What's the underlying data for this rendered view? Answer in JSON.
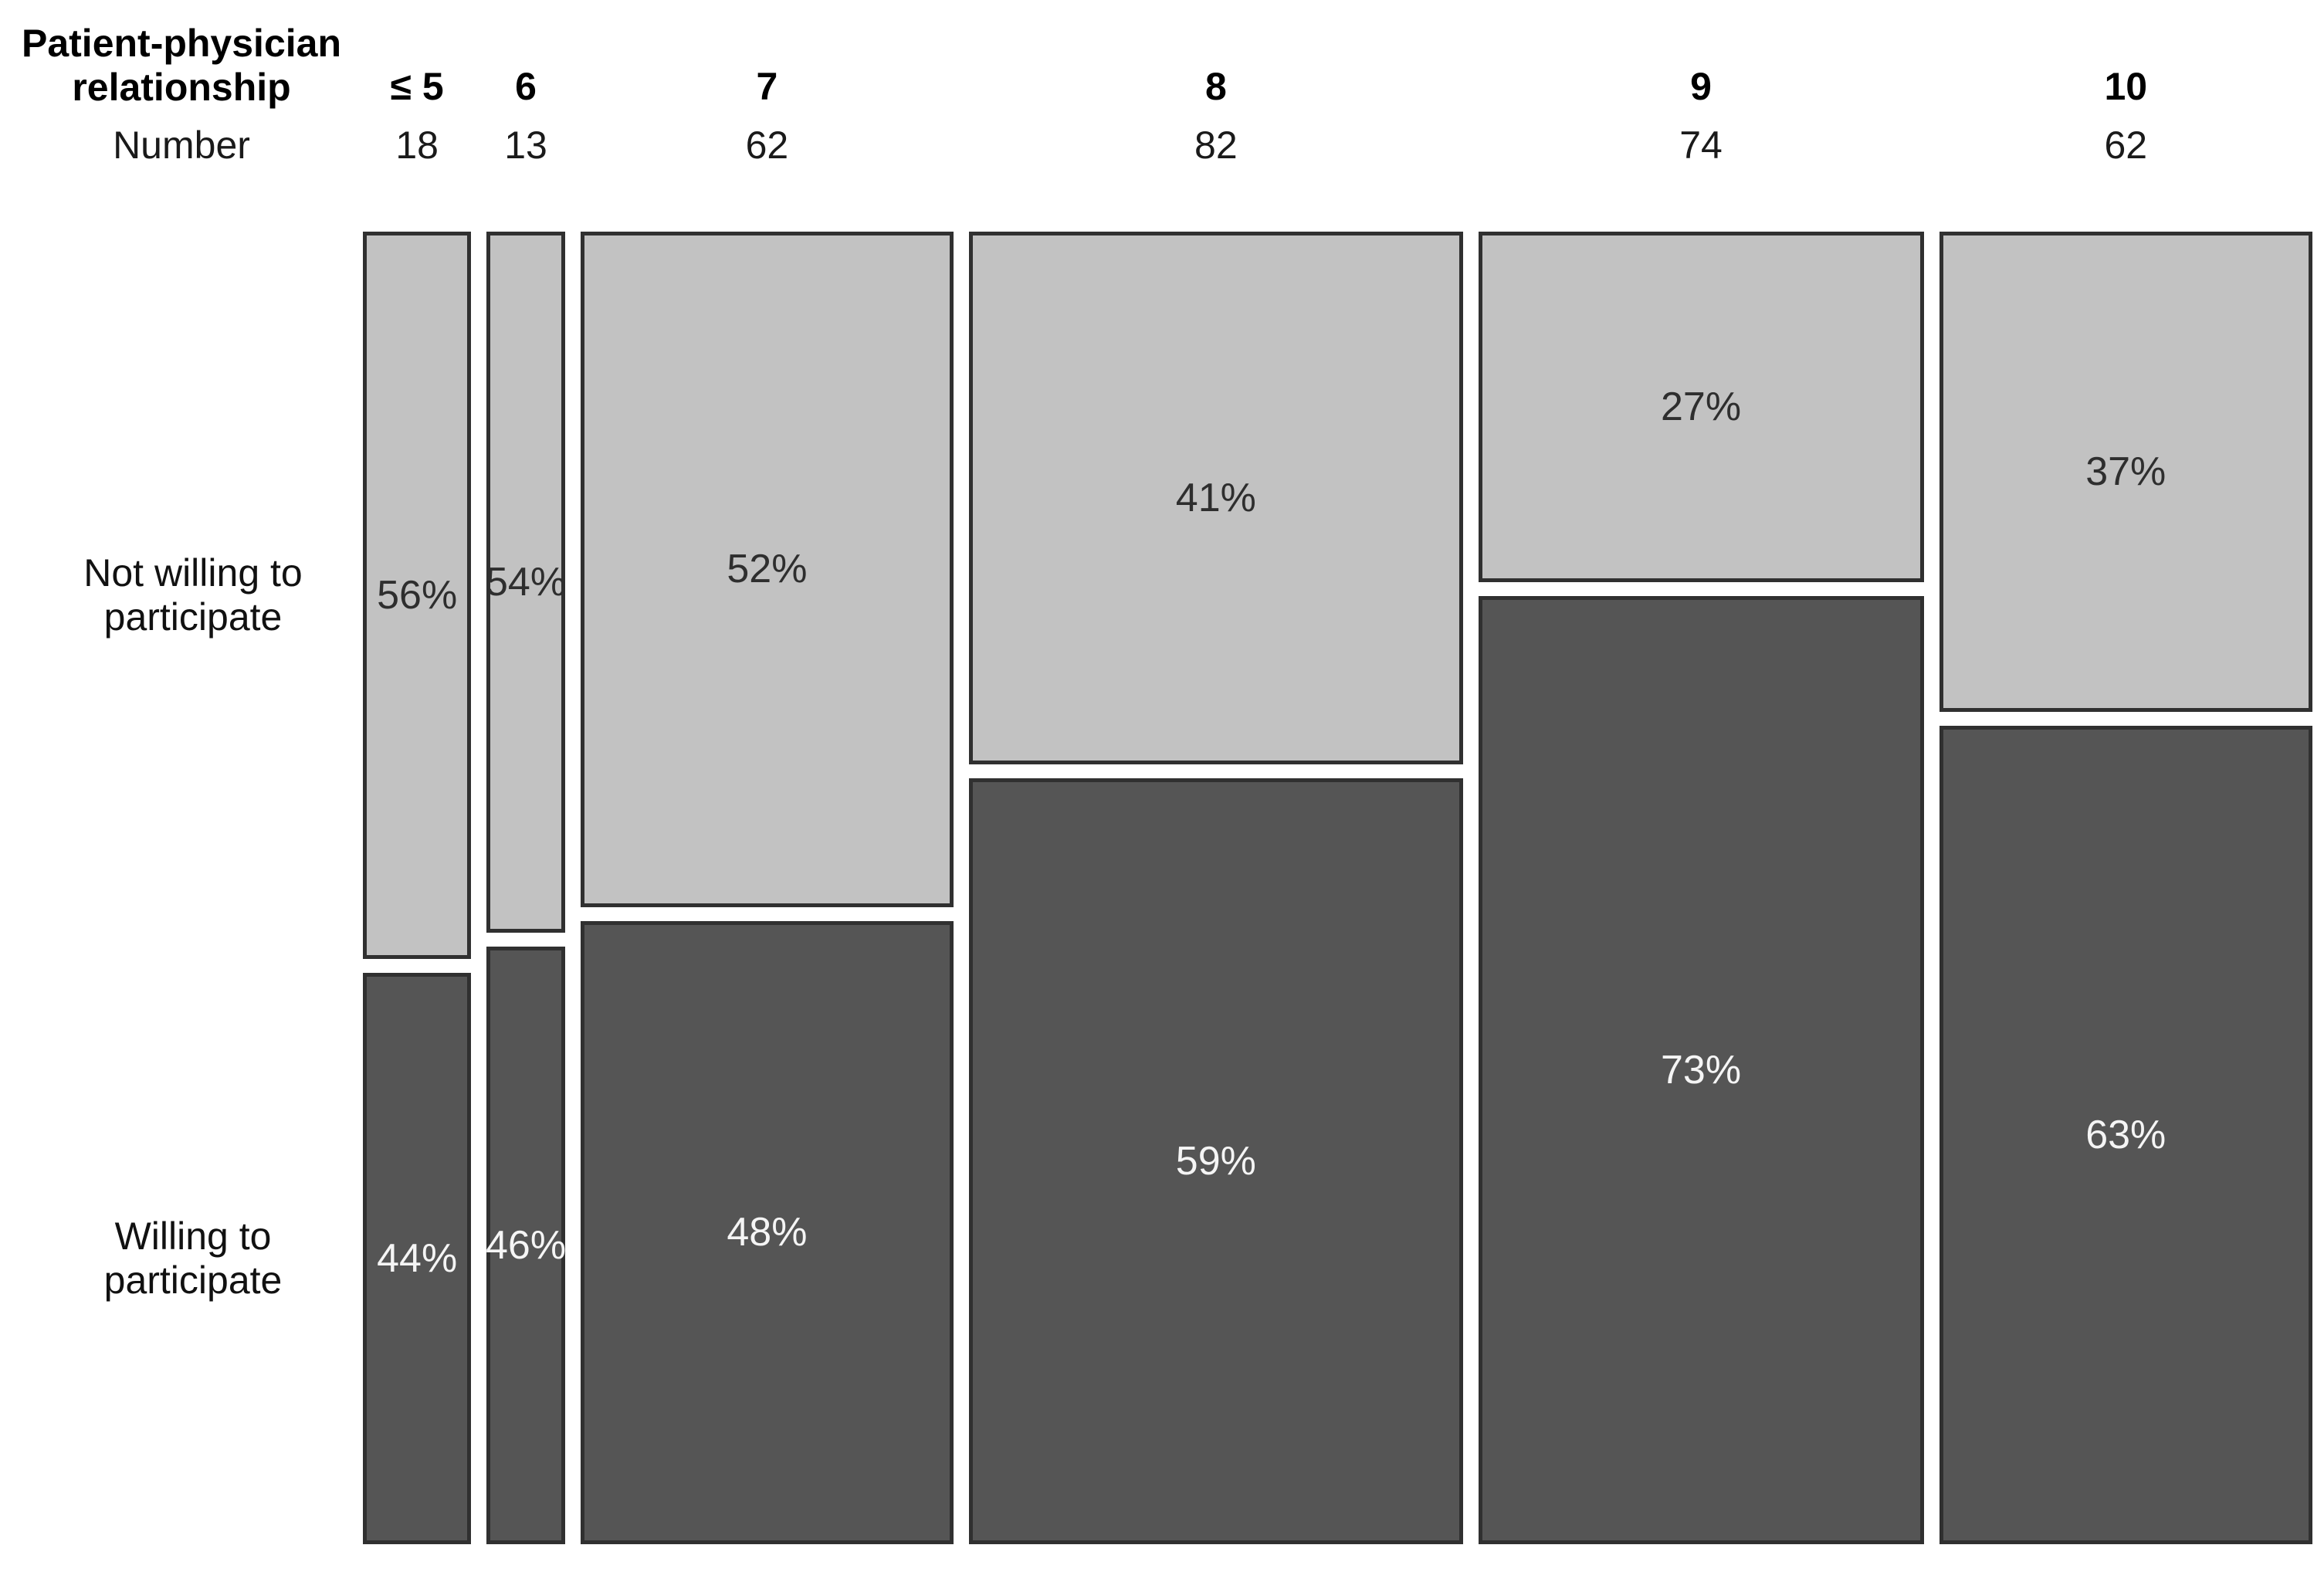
{
  "chart_data": {
    "type": "mosaic",
    "header": {
      "line1": "Patient-physician",
      "line2": "relationship"
    },
    "count_label": "Number",
    "categories": [
      "≤ 5",
      "6",
      "7",
      "8",
      "9",
      "10"
    ],
    "counts": [
      18,
      13,
      62,
      82,
      74,
      62
    ],
    "series": [
      {
        "name": "Not willing to participate",
        "label_lines": [
          "Not willing to",
          "participate"
        ],
        "values_pct": [
          56,
          54,
          52,
          41,
          27,
          37
        ],
        "fill": "#c2c2c2",
        "text_color": "#2e2e2e"
      },
      {
        "name": "Willing to participate",
        "label_lines": [
          "Willing to",
          "participate"
        ],
        "values_pct": [
          44,
          46,
          48,
          59,
          73,
          63
        ],
        "fill": "#555555",
        "text_color": "#f5f5f5"
      }
    ],
    "layout_hints": {
      "column_width_proportional_to": "counts",
      "row_order_top_to_bottom": [
        "Not willing to participate",
        "Willing to participate"
      ],
      "legend": "none",
      "grid": false,
      "axes": "none"
    }
  },
  "colors": {
    "background": "#ffffff",
    "segment_border": "#303030",
    "light_segment": "#c2c2c2",
    "dark_segment": "#555555",
    "light_segment_text": "#2e2e2e",
    "dark_segment_text": "#f5f5f5",
    "header_text": "#000000"
  }
}
